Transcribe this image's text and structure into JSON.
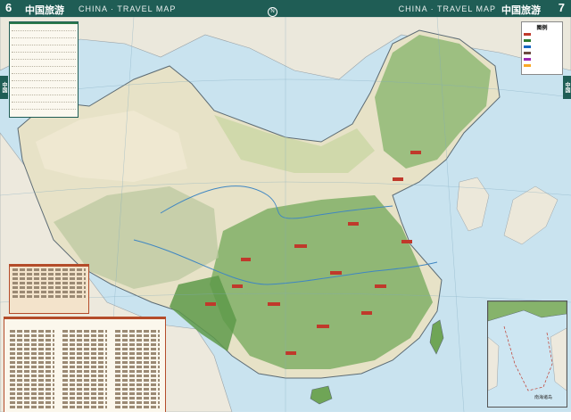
{
  "header": {
    "page_left": "6",
    "page_right": "7",
    "title_cn_left": "中国旅游",
    "title_cn_right": "中国旅游",
    "title_en_left": "CHINA · TRAVEL MAP",
    "title_en_right": "CHINA · TRAVEL MAP",
    "center_caption": "",
    "compass_glyph": "N"
  },
  "side_tabs": {
    "left": "中国",
    "right": "中国"
  },
  "infobox": {
    "title": ""
  },
  "legend": {
    "title": "图例",
    "items": [
      {
        "color": "#c0392b",
        "label": ""
      },
      {
        "color": "#2e7d32",
        "label": ""
      },
      {
        "color": "#1565c0",
        "label": ""
      },
      {
        "color": "#6d4c41",
        "label": ""
      },
      {
        "color": "#9c27b0",
        "label": ""
      },
      {
        "color": "#f9a825",
        "label": ""
      }
    ]
  },
  "text_box_1": {
    "title": ""
  },
  "text_box_2": {
    "title": ""
  },
  "inset": {
    "caption": "南海诸岛"
  },
  "footer": {
    "left": "",
    "right": ""
  },
  "colors": {
    "header_band": "#1f5d55",
    "sea": "#c9e3ef",
    "land_desert": "#ede6cf",
    "land_green": "#86b36b",
    "land_dark_green": "#4f8a3f",
    "accent_red": "#b44c2a"
  }
}
